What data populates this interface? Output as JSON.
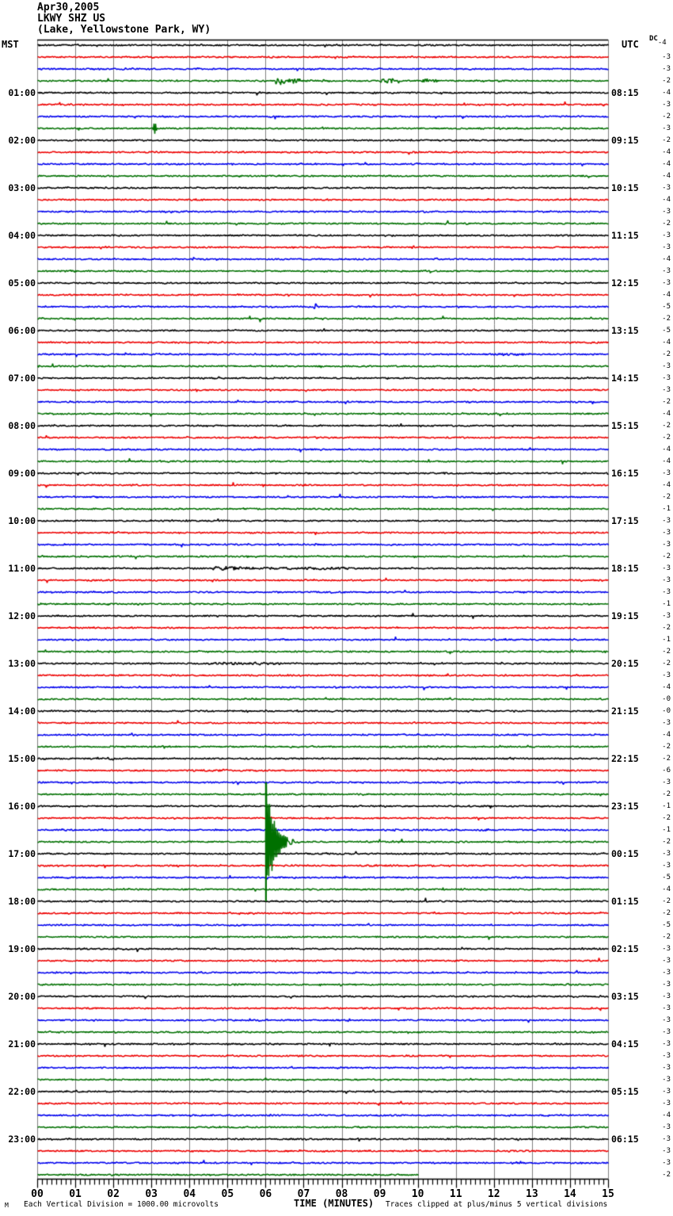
{
  "header": {
    "date": "Apr30,2005",
    "station": "LKWY SHZ US",
    "location": "(Lake, Yellowstone Park, WY)"
  },
  "axes": {
    "left_timezone": "MST",
    "right_timezone": "UTC",
    "dc_label": "DC",
    "x_title": "TIME (MINUTES)",
    "x_tick_labels": [
      "00",
      "01",
      "02",
      "03",
      "04",
      "05",
      "06",
      "07",
      "08",
      "09",
      "10",
      "11",
      "12",
      "13",
      "14",
      "15"
    ]
  },
  "footer": {
    "left_note": "Each Vertical Division = 1000.00 microvolts",
    "right_note": "Traces clipped at plus/minus 5 vertical divisions",
    "corner_mark": "M"
  },
  "chart_data": {
    "type": "line",
    "kind": "helicorder-seismogram",
    "title": "LKWY SHZ US (Lake, Yellowstone Park, WY) Apr30,2005",
    "xlabel": "TIME (MINUTES)",
    "x_range": [
      0,
      15
    ],
    "minutes_per_row": 15,
    "rows": 96,
    "grid": true,
    "grid_color": "#7f7f7f",
    "trace_color_cycle": [
      "#000000",
      "#ee0000",
      "#0000ee",
      "#007000"
    ],
    "division_microvolts": "1000.00",
    "clip_divisions": 5,
    "noise_base_amp": 0.85,
    "seed": 1234,
    "last_row_end_minute": 10,
    "left_labels": [
      {
        "row": 4,
        "text": "01:00"
      },
      {
        "row": 8,
        "text": "02:00"
      },
      {
        "row": 12,
        "text": "03:00"
      },
      {
        "row": 16,
        "text": "04:00"
      },
      {
        "row": 20,
        "text": "05:00"
      },
      {
        "row": 24,
        "text": "06:00"
      },
      {
        "row": 28,
        "text": "07:00"
      },
      {
        "row": 32,
        "text": "08:00"
      },
      {
        "row": 36,
        "text": "09:00"
      },
      {
        "row": 40,
        "text": "10:00"
      },
      {
        "row": 44,
        "text": "11:00"
      },
      {
        "row": 48,
        "text": "12:00"
      },
      {
        "row": 52,
        "text": "13:00"
      },
      {
        "row": 56,
        "text": "14:00"
      },
      {
        "row": 60,
        "text": "15:00"
      },
      {
        "row": 64,
        "text": "16:00"
      },
      {
        "row": 68,
        "text": "17:00"
      },
      {
        "row": 72,
        "text": "18:00"
      },
      {
        "row": 76,
        "text": "19:00"
      },
      {
        "row": 80,
        "text": "20:00"
      },
      {
        "row": 84,
        "text": "21:00"
      },
      {
        "row": 88,
        "text": "22:00"
      },
      {
        "row": 92,
        "text": "23:00"
      }
    ],
    "right_labels": [
      {
        "row": 4,
        "text": "08:15"
      },
      {
        "row": 8,
        "text": "09:15"
      },
      {
        "row": 12,
        "text": "10:15"
      },
      {
        "row": 16,
        "text": "11:15"
      },
      {
        "row": 20,
        "text": "12:15"
      },
      {
        "row": 24,
        "text": "13:15"
      },
      {
        "row": 28,
        "text": "14:15"
      },
      {
        "row": 32,
        "text": "15:15"
      },
      {
        "row": 36,
        "text": "16:15"
      },
      {
        "row": 40,
        "text": "17:15"
      },
      {
        "row": 44,
        "text": "18:15"
      },
      {
        "row": 48,
        "text": "19:15"
      },
      {
        "row": 52,
        "text": "20:15"
      },
      {
        "row": 56,
        "text": "21:15"
      },
      {
        "row": 60,
        "text": "22:15"
      },
      {
        "row": 64,
        "text": "23:15"
      },
      {
        "row": 68,
        "text": "00:15"
      },
      {
        "row": 72,
        "text": "01:15"
      },
      {
        "row": 76,
        "text": "02:15"
      },
      {
        "row": 80,
        "text": "03:15"
      },
      {
        "row": 84,
        "text": "04:15"
      },
      {
        "row": 88,
        "text": "05:15"
      },
      {
        "row": 92,
        "text": "06:15"
      }
    ],
    "dc_offsets": [
      "-4",
      "-3",
      "-3",
      "-2",
      "-4",
      "-3",
      "-2",
      "-3",
      "-2",
      "-4",
      "-4",
      "-4",
      "-3",
      "-4",
      "-3",
      "-2",
      "-3",
      "-3",
      "-4",
      "-3",
      "-3",
      "-4",
      "-5",
      "-2",
      "-5",
      "-4",
      "-2",
      "-3",
      "-3",
      "-3",
      "-2",
      "-4",
      "-2",
      "-2",
      "-4",
      "-4",
      "-3",
      "-4",
      "-2",
      "-1",
      "-3",
      "-3",
      "-3",
      "-2",
      "-3",
      "-3",
      "-3",
      "-1",
      "-3",
      "-2",
      "-1",
      "-2",
      "-2",
      "-3",
      "-4",
      "-0",
      "-0",
      "-3",
      "-4",
      "-2",
      "-2",
      "-6",
      "-3",
      "-2",
      "-1",
      "-2",
      "-1",
      "-2",
      "-3",
      "-3",
      "-5",
      "-4",
      "-2",
      "-2",
      "-5",
      "-2",
      "-3",
      "-3",
      "-3",
      "-3",
      "-3",
      "-3",
      "-3",
      "-3",
      "-3",
      "-3",
      "-3",
      "-3",
      "-3",
      "-3",
      "-4",
      "-3",
      "-3",
      "-3",
      "-3",
      "-2"
    ],
    "events": [
      {
        "row": 2,
        "shape": "spike",
        "at": 3.6,
        "amp": 2.5
      },
      {
        "row": 3,
        "shape": "burst",
        "start": 6.25,
        "end": 6.5,
        "amp": 6
      },
      {
        "row": 3,
        "shape": "burst",
        "start": 6.55,
        "end": 6.95,
        "amp": 4.5
      },
      {
        "row": 3,
        "shape": "burst",
        "start": 7.0,
        "end": 7.9,
        "amp": 1.8
      },
      {
        "row": 3,
        "shape": "burst",
        "start": 9.0,
        "end": 9.4,
        "amp": 4
      },
      {
        "row": 3,
        "shape": "burst",
        "start": 10.1,
        "end": 10.5,
        "amp": 3
      },
      {
        "row": 7,
        "shape": "spike",
        "at": 3.08,
        "amp": 10
      },
      {
        "row": 18,
        "shape": "spike",
        "at": 4.1,
        "amp": 3.5
      },
      {
        "row": 22,
        "shape": "spike",
        "at": 7.3,
        "amp": 6
      },
      {
        "row": 26,
        "shape": "burst",
        "start": 11.9,
        "end": 12.8,
        "amp": 1.8
      },
      {
        "row": 44,
        "shape": "burst",
        "start": 4.6,
        "end": 5.5,
        "amp": 3.2
      },
      {
        "row": 44,
        "shape": "burst",
        "start": 5.5,
        "end": 8.2,
        "amp": 2.2
      },
      {
        "row": 52,
        "shape": "burst",
        "start": 4.4,
        "end": 6.4,
        "amp": 2.0
      },
      {
        "row": 59,
        "shape": "spike",
        "at": 6.9,
        "amp": 3
      },
      {
        "row": 60,
        "shape": "burst",
        "start": 1.55,
        "end": 2.05,
        "amp": 2.2
      },
      {
        "row": 61,
        "shape": "burst",
        "start": 3.8,
        "end": 5.4,
        "amp": 1.6
      },
      {
        "row": 67,
        "shape": "quake",
        "at": 6.0,
        "amp": 75,
        "end": 7.5,
        "decay": 4.5
      },
      {
        "row": 69,
        "shape": "burst",
        "start": 8.7,
        "end": 10.2,
        "amp": 1.6
      }
    ]
  }
}
